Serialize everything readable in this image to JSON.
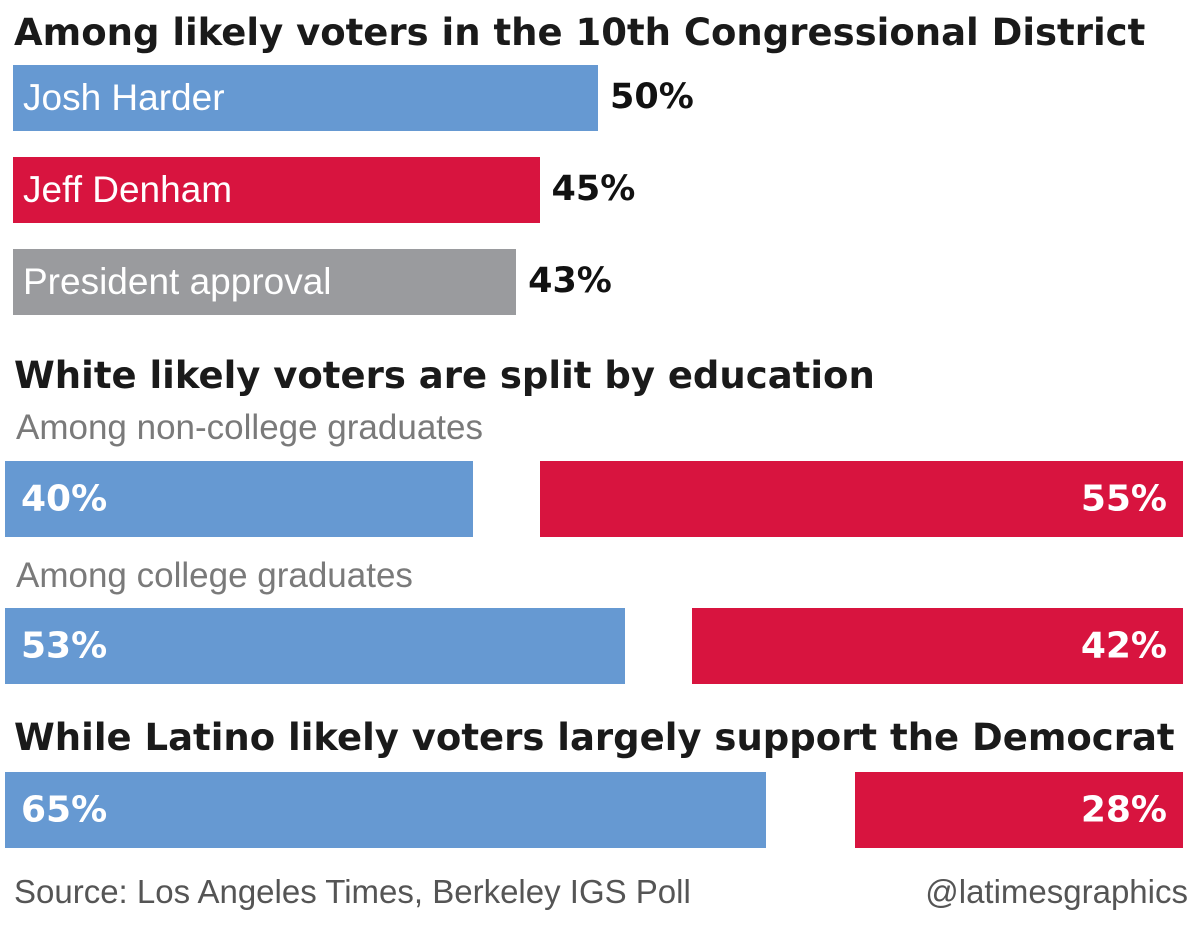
{
  "colors": {
    "blue": "#6699d2",
    "red": "#d8143f",
    "gray": "#9a9b9e"
  },
  "sections": {
    "overall": {
      "heading": "Among likely voters in the 10th Congressional District"
    },
    "white": {
      "heading": "White likely voters are split by education",
      "noncollege_label": "Among non-college graduates",
      "college_label": "Among college graduates"
    },
    "latino": {
      "heading": "While Latino likely voters largely support the Democrat"
    }
  },
  "chart_data": [
    {
      "type": "bar",
      "title": "Among likely voters in the 10th Congressional District",
      "categories": [
        "Josh Harder",
        "Jeff Denham",
        "President approval"
      ],
      "values": [
        50,
        45,
        43
      ],
      "labels": [
        "50%",
        "45%",
        "43%"
      ],
      "colors": [
        "#6699d2",
        "#d8143f",
        "#9a9b9e"
      ]
    },
    {
      "type": "bar",
      "title": "White likely voters are split by education",
      "categories": [
        "Among non-college graduates",
        "Among college graduates"
      ],
      "series": [
        {
          "values": [
            40,
            53
          ],
          "labels": [
            "40%",
            "53%"
          ],
          "color": "#6699d2"
        },
        {
          "values": [
            55,
            42
          ],
          "labels": [
            "55%",
            "42%"
          ],
          "color": "#d8143f"
        }
      ]
    },
    {
      "type": "bar",
      "title": "While Latino likely voters largely support the Democrat",
      "categories": [
        ""
      ],
      "series": [
        {
          "values": [
            65
          ],
          "labels": [
            "65%"
          ],
          "color": "#6699d2"
        },
        {
          "values": [
            28
          ],
          "labels": [
            "28%"
          ],
          "color": "#d8143f"
        }
      ]
    }
  ],
  "footer": {
    "source": "Source: Los Angeles Times, Berkeley IGS Poll",
    "credit": "@latimesgraphics"
  }
}
